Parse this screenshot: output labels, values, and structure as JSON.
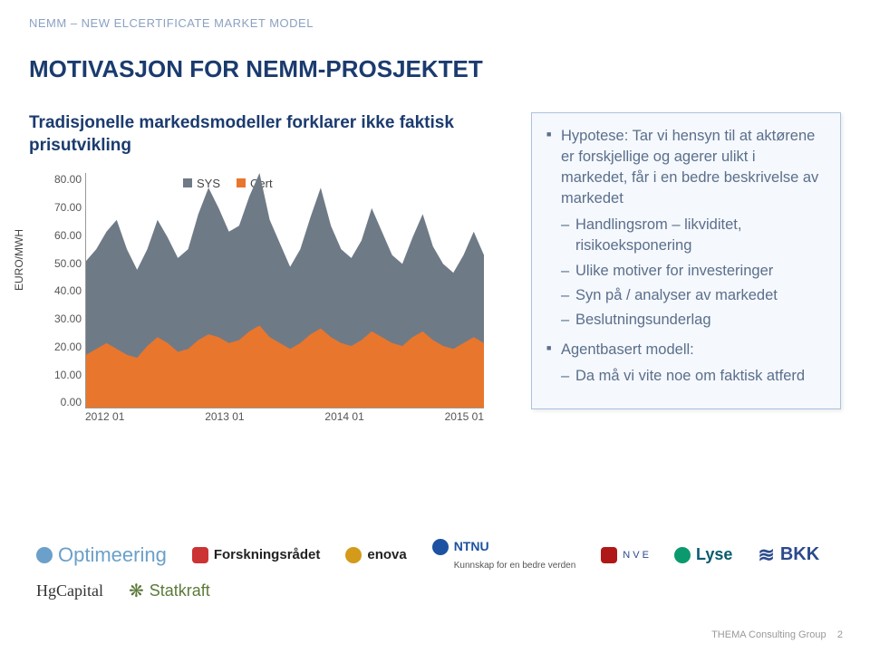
{
  "header": "NEMM – NEW ELCERTIFICATE MARKET MODEL",
  "title": "MOTIVASJON FOR NEMM-PROSJEKTET",
  "subtitle": "Tradisjonelle markedsmodeller forklarer ikke faktisk prisutvikling",
  "chart": {
    "type": "stacked-area",
    "y_label": "EURO/MWH",
    "ylim": [
      0,
      80
    ],
    "ytick_step": 10,
    "y_ticks": [
      "80.00",
      "70.00",
      "60.00",
      "50.00",
      "40.00",
      "30.00",
      "20.00",
      "10.00",
      "0.00"
    ],
    "x_ticks": [
      "2012 01",
      "2013 01",
      "2014 01",
      "2015 01"
    ],
    "legend": [
      {
        "label": "SYS",
        "color": "#6f7a87"
      },
      {
        "label": "Cert",
        "color": "#e8762d"
      }
    ],
    "background_color": "#ffffff",
    "axis_color": "#999999",
    "label_fontsize": 12,
    "n_points": 40,
    "series_cert_color": "#e8762d",
    "series_total_color": "#6f7a87",
    "cert_values": [
      18,
      20,
      22,
      20,
      18,
      17,
      21,
      24,
      22,
      19,
      20,
      23,
      25,
      24,
      22,
      23,
      26,
      28,
      24,
      22,
      20,
      22,
      25,
      27,
      24,
      22,
      21,
      23,
      26,
      24,
      22,
      21,
      24,
      26,
      23,
      21,
      20,
      22,
      24,
      22
    ],
    "sys_values": [
      32,
      34,
      38,
      44,
      36,
      30,
      33,
      40,
      36,
      32,
      34,
      43,
      50,
      44,
      38,
      39,
      46,
      52,
      40,
      34,
      28,
      32,
      40,
      48,
      38,
      32,
      30,
      34,
      42,
      36,
      30,
      28,
      34,
      40,
      32,
      28,
      26,
      30,
      36,
      30
    ]
  },
  "bullets": {
    "items": [
      {
        "text": "Hypotese: Tar vi hensyn til at aktørene er forskjellige og agerer ulikt i markedet, får i en bedre beskrivelse av markedet",
        "sub": [
          "Handlingsrom – likviditet, risikoeksponering",
          "Ulike motiver for investeringer",
          "Syn på / analyser av markedet",
          "Beslutningsunderlag"
        ]
      },
      {
        "text": "Agentbasert modell:",
        "sub": [
          "Da må vi vite noe om faktisk atferd"
        ]
      }
    ]
  },
  "logos": {
    "optimeering": "Optimeering",
    "ntnu": "NTNU",
    "ntnu_sub": "Kunnskap for en bedre verden",
    "forskning": "Forskningsrådet",
    "enova": "enova",
    "nve": "N V E",
    "lyse": "Lyse",
    "bkk": "BKK",
    "hg": "HgCapital",
    "statkraft": "Statkraft"
  },
  "footer": {
    "text": "THEMA Consulting Group",
    "page": "2"
  }
}
